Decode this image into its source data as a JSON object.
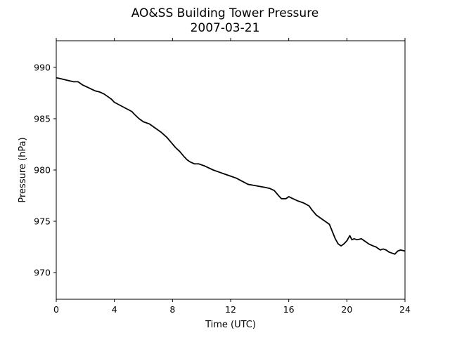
{
  "chart_data": {
    "type": "line",
    "title": "AO&SS Building Tower Pressure",
    "subtitle": "2007-03-21",
    "xlabel": "Time (UTC)",
    "ylabel": "Pressure (hPa)",
    "xlim": [
      0,
      24
    ],
    "ylim": [
      967.4,
      992.6
    ],
    "xticks": [
      0,
      4,
      8,
      12,
      16,
      20,
      24
    ],
    "xtick_labels": [
      "0",
      "4",
      "8",
      "12",
      "16",
      "20",
      "24"
    ],
    "yticks": [
      970,
      975,
      980,
      985,
      990
    ],
    "ytick_labels": [
      "970",
      "975",
      "980",
      "985",
      "990"
    ],
    "grid": false,
    "line_color": "#000000",
    "series": [
      {
        "x": [
          0,
          0.3,
          0.6,
          0.9,
          1.2,
          1.5,
          1.8,
          2.1,
          2.4,
          2.7,
          3.0,
          3.3,
          3.6,
          3.8,
          4.0,
          4.4,
          4.8,
          5.2,
          5.4,
          5.7,
          6.0,
          6.4,
          6.8,
          7.2,
          7.6,
          7.9,
          8.2,
          8.5,
          8.8,
          9.0,
          9.2,
          9.5,
          9.8,
          10.0,
          10.2,
          10.5,
          10.8,
          11.2,
          11.6,
          12.0,
          12.4,
          12.8,
          13.2,
          13.6,
          14.0,
          14.4,
          14.7,
          15.0,
          15.3,
          15.5,
          15.8,
          16.0,
          16.3,
          16.6,
          17.0,
          17.4,
          17.6,
          17.9,
          18.2,
          18.5,
          18.8,
          19.0,
          19.2,
          19.4,
          19.6,
          19.8,
          20.0,
          20.2,
          20.35,
          20.5,
          20.7,
          21.0,
          21.2,
          21.5,
          21.8,
          22.0,
          22.3,
          22.5,
          22.7,
          22.9,
          23.1,
          23.3,
          23.5,
          23.7,
          24.0
        ],
        "y": [
          989.0,
          988.9,
          988.8,
          988.7,
          988.6,
          988.6,
          988.3,
          988.1,
          987.9,
          987.7,
          987.6,
          987.4,
          987.1,
          986.9,
          986.6,
          986.3,
          986.0,
          985.7,
          985.4,
          985.0,
          984.7,
          984.5,
          984.1,
          983.7,
          983.2,
          982.7,
          982.2,
          981.8,
          981.3,
          981.0,
          980.8,
          980.6,
          980.6,
          980.5,
          980.4,
          980.2,
          980.0,
          979.8,
          979.6,
          979.4,
          979.2,
          978.9,
          978.6,
          978.5,
          978.4,
          978.3,
          978.2,
          978.0,
          977.5,
          977.2,
          977.2,
          977.4,
          977.2,
          977.0,
          976.8,
          976.5,
          976.1,
          975.6,
          975.3,
          975.0,
          974.7,
          974.0,
          973.3,
          972.8,
          972.6,
          972.8,
          973.1,
          973.6,
          973.2,
          973.3,
          973.2,
          973.3,
          973.1,
          972.8,
          972.6,
          972.5,
          972.2,
          972.3,
          972.2,
          972.0,
          971.9,
          971.8,
          972.1,
          972.2,
          972.1
        ]
      }
    ]
  }
}
